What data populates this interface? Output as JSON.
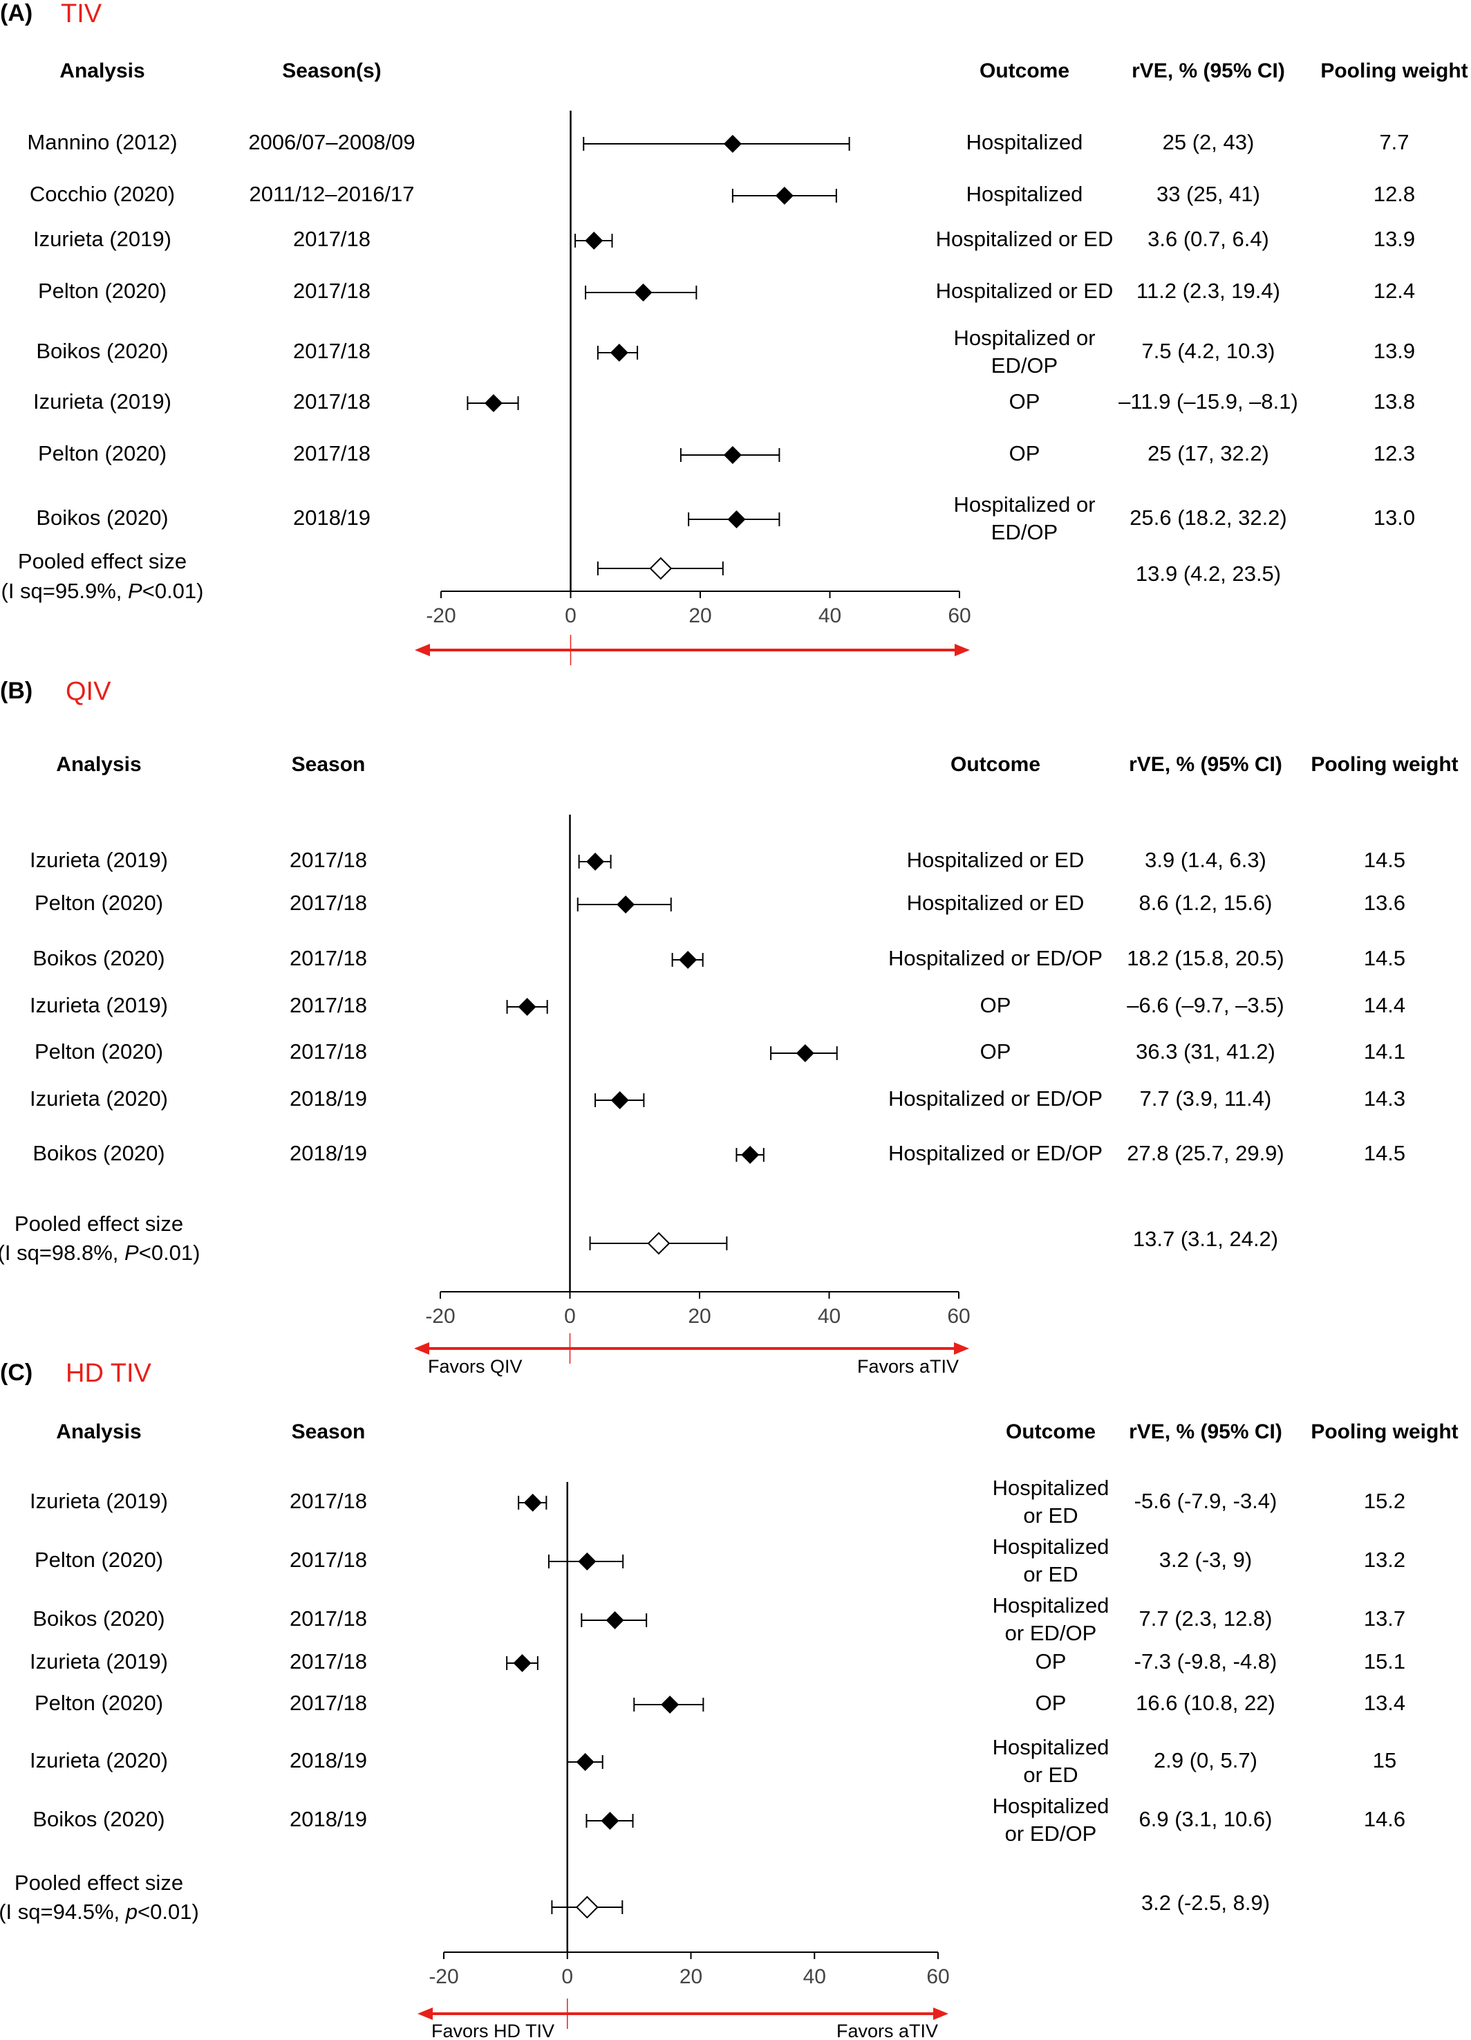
{
  "chart_data": [
    {
      "type": "forest",
      "panel_label": "(A)",
      "panel_title": "TIV",
      "columns": {
        "analysis": "Analysis",
        "season": "Season(s)",
        "outcome": "Outcome",
        "rve": "rVE, % (95% CI)",
        "weight": "Pooling weight"
      },
      "xlim": [
        -20,
        60
      ],
      "ticks": [
        "-20",
        "0",
        "20",
        "40",
        "60"
      ],
      "favors_left": "",
      "favors_right": "",
      "rows": [
        {
          "analysis": "Mannino (2012)",
          "season": "2006/07–2008/09",
          "outcome": [
            "Hospitalized"
          ],
          "rve": "25 (2, 43)",
          "weight": "7.7",
          "est": 25,
          "lo": 2,
          "hi": 43
        },
        {
          "analysis": "Cocchio (2020)",
          "season": "2011/12–2016/17",
          "outcome": [
            "Hospitalized"
          ],
          "rve": "33 (25, 41)",
          "weight": "12.8",
          "est": 33,
          "lo": 25,
          "hi": 41
        },
        {
          "analysis": "Izurieta (2019)",
          "season": "2017/18",
          "outcome": [
            "Hospitalized or ED"
          ],
          "rve": "3.6 (0.7, 6.4)",
          "weight": "13.9",
          "est": 3.6,
          "lo": 0.7,
          "hi": 6.4
        },
        {
          "analysis": "Pelton (2020)",
          "season": "2017/18",
          "outcome": [
            "Hospitalized or ED"
          ],
          "rve": "11.2 (2.3, 19.4)",
          "weight": "12.4",
          "est": 11.2,
          "lo": 2.3,
          "hi": 19.4
        },
        {
          "analysis": "Boikos (2020)",
          "season": "2017/18",
          "outcome": [
            "Hospitalized or",
            "ED/OP"
          ],
          "rve": "7.5 (4.2, 10.3)",
          "weight": "13.9",
          "est": 7.5,
          "lo": 4.2,
          "hi": 10.3
        },
        {
          "analysis": "Izurieta (2019)",
          "season": "2017/18",
          "outcome": [
            "OP"
          ],
          "rve": "–11.9 (–15.9, –8.1)",
          "weight": "13.8",
          "est": -11.9,
          "lo": -15.9,
          "hi": -8.1
        },
        {
          "analysis": "Pelton (2020)",
          "season": "2017/18",
          "outcome": [
            "OP"
          ],
          "rve": "25 (17, 32.2)",
          "weight": "12.3",
          "est": 25,
          "lo": 17,
          "hi": 32.2
        },
        {
          "analysis": "Boikos (2020)",
          "season": "2018/19",
          "outcome": [
            "Hospitalized or",
            "ED/OP"
          ],
          "rve": "25.6 (18.2, 32.2)",
          "weight": "13.0",
          "est": 25.6,
          "lo": 18.2,
          "hi": 32.2
        }
      ],
      "pooled": {
        "label1": "Pooled effect size",
        "label2_pre": "(I sq=95.9%, ",
        "label2_p": "P",
        "label2_post": "<0.01)",
        "rve": "13.9 (4.2, 23.5)",
        "est": 13.9,
        "lo": 4.2,
        "hi": 23.5
      }
    },
    {
      "type": "forest",
      "panel_label": "(B)",
      "panel_title": "QIV",
      "columns": {
        "analysis": "Analysis",
        "season": "Season",
        "outcome": "Outcome",
        "rve": "rVE, % (95% CI)",
        "weight": "Pooling weight"
      },
      "xlim": [
        -20,
        60
      ],
      "ticks": [
        "-20",
        "0",
        "20",
        "40",
        "60"
      ],
      "favors_left": "Favors QIV",
      "favors_right": "Favors aTIV",
      "rows": [
        {
          "analysis": "Izurieta (2019)",
          "season": "2017/18",
          "outcome": [
            "Hospitalized or ED"
          ],
          "rve": "3.9 (1.4, 6.3)",
          "weight": "14.5",
          "est": 3.9,
          "lo": 1.4,
          "hi": 6.3
        },
        {
          "analysis": "Pelton (2020)",
          "season": "2017/18",
          "outcome": [
            "Hospitalized or ED"
          ],
          "rve": "8.6 (1.2, 15.6)",
          "weight": "13.6",
          "est": 8.6,
          "lo": 1.2,
          "hi": 15.6
        },
        {
          "analysis": "Boikos (2020)",
          "season": "2017/18",
          "outcome": [
            "Hospitalized or ED/OP"
          ],
          "rve": "18.2 (15.8, 20.5)",
          "weight": "14.5",
          "est": 18.2,
          "lo": 15.8,
          "hi": 20.5
        },
        {
          "analysis": "Izurieta (2019)",
          "season": "2017/18",
          "outcome": [
            "OP"
          ],
          "rve": "–6.6 (–9.7, –3.5)",
          "weight": "14.4",
          "est": -6.6,
          "lo": -9.7,
          "hi": -3.5
        },
        {
          "analysis": "Pelton (2020)",
          "season": "2017/18",
          "outcome": [
            "OP"
          ],
          "rve": "36.3 (31, 41.2)",
          "weight": "14.1",
          "est": 36.3,
          "lo": 31,
          "hi": 41.2
        },
        {
          "analysis": "Izurieta (2020)",
          "season": "2018/19",
          "outcome": [
            "Hospitalized or ED/OP"
          ],
          "rve": "7.7 (3.9, 11.4)",
          "weight": "14.3",
          "est": 7.7,
          "lo": 3.9,
          "hi": 11.4
        },
        {
          "analysis": "Boikos (2020)",
          "season": "2018/19",
          "outcome": [
            "Hospitalized or ED/OP"
          ],
          "rve": "27.8 (25.7, 29.9)",
          "weight": "14.5",
          "est": 27.8,
          "lo": 25.7,
          "hi": 29.9
        }
      ],
      "pooled": {
        "label1": "Pooled effect size",
        "label2_pre": "(I sq=98.8%, ",
        "label2_p": "P",
        "label2_post": "<0.01)",
        "rve": "13.7 (3.1, 24.2)",
        "est": 13.7,
        "lo": 3.1,
        "hi": 24.2
      }
    },
    {
      "type": "forest",
      "panel_label": "(C)",
      "panel_title": "HD TIV",
      "columns": {
        "analysis": "Analysis",
        "season": "Season",
        "outcome": "Outcome",
        "rve": "rVE, % (95% CI)",
        "weight": "Pooling weight"
      },
      "xlim": [
        -20,
        60
      ],
      "ticks": [
        "-20",
        "0",
        "20",
        "40",
        "60"
      ],
      "favors_left": "Favors HD TIV",
      "favors_right": "Favors aTIV",
      "rows": [
        {
          "analysis": "Izurieta (2019)",
          "season": "2017/18",
          "outcome": [
            "Hospitalized",
            "or ED"
          ],
          "rve": "-5.6 (-7.9, -3.4)",
          "weight": "15.2",
          "est": -5.6,
          "lo": -7.9,
          "hi": -3.4
        },
        {
          "analysis": "Pelton (2020)",
          "season": "2017/18",
          "outcome": [
            "Hospitalized",
            "or ED"
          ],
          "rve": "3.2 (-3, 9)",
          "weight": "13.2",
          "est": 3.2,
          "lo": -3,
          "hi": 9
        },
        {
          "analysis": "Boikos (2020)",
          "season": "2017/18",
          "outcome": [
            "Hospitalized",
            "or ED/OP"
          ],
          "rve": "7.7 (2.3, 12.8)",
          "weight": "13.7",
          "est": 7.7,
          "lo": 2.3,
          "hi": 12.8
        },
        {
          "analysis": "Izurieta (2019)",
          "season": "2017/18",
          "outcome": [
            "OP"
          ],
          "rve": "-7.3 (-9.8, -4.8)",
          "weight": "15.1",
          "est": -7.3,
          "lo": -9.8,
          "hi": -4.8
        },
        {
          "analysis": "Pelton (2020)",
          "season": "2017/18",
          "outcome": [
            "OP"
          ],
          "rve": "16.6 (10.8, 22)",
          "weight": "13.4",
          "est": 16.6,
          "lo": 10.8,
          "hi": 22
        },
        {
          "analysis": "Izurieta (2020)",
          "season": "2018/19",
          "outcome": [
            "Hospitalized",
            "or ED"
          ],
          "rve": "2.9 (0, 5.7)",
          "weight": "15",
          "est": 2.9,
          "lo": 0,
          "hi": 5.7
        },
        {
          "analysis": "Boikos (2020)",
          "season": "2018/19",
          "outcome": [
            "Hospitalized",
            "or ED/OP"
          ],
          "rve": "6.9 (3.1, 10.6)",
          "weight": "14.6",
          "est": 6.9,
          "lo": 3.1,
          "hi": 10.6
        }
      ],
      "pooled": {
        "label1": "Pooled effect size",
        "label2_pre": "(I sq=94.5%, ",
        "label2_p": "p",
        "label2_post": "<0.01)",
        "rve": "3.2 (-2.5, 8.9)",
        "est": 3.2,
        "lo": -2.5,
        "hi": 8.9
      }
    }
  ]
}
